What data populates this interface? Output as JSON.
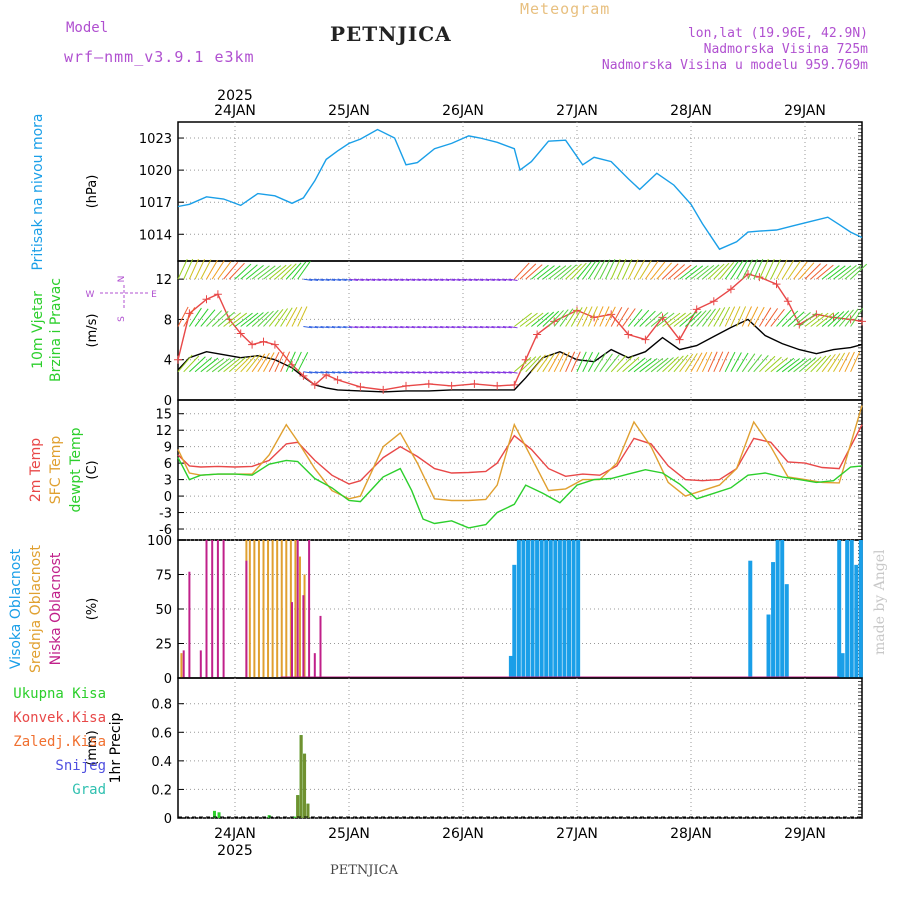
{
  "header": {
    "model_label": "Model",
    "model_name": "wrf—nmm_v3.9.1  e3km",
    "station": "PETNJICA",
    "product": "Meteogram",
    "lonlat": "lon,lat (19.96E, 42.9N)",
    "elevation": "Nadmorska Visina 725m",
    "model_elevation": "Nadmorska Visina u modelu 959.769m"
  },
  "footer": {
    "station": "PETNJICA"
  },
  "credit": "made by Angel",
  "chart_data": {
    "type": "line",
    "year_label": "2025",
    "dates": [
      "24JAN",
      "25JAN",
      "26JAN",
      "27JAN",
      "28JAN",
      "29JAN"
    ],
    "x_range_days": [
      23.5,
      29.5
    ],
    "panels": [
      {
        "id": "pressure",
        "ylabel": "Pritisak na nivou mora",
        "unit": "(hPa)",
        "yticks": [
          1014,
          1017,
          1020,
          1023
        ],
        "ylim": [
          1011.5,
          1024.5
        ],
        "series": [
          {
            "color": "#1a9fe8",
            "t": [
              23.5,
              23.6,
              23.75,
              23.9,
              24.05,
              24.2,
              24.35,
              24.5,
              24.6,
              24.7,
              24.8,
              24.9,
              25.0,
              25.1,
              25.25,
              25.4,
              25.5,
              25.6,
              25.75,
              25.9,
              26.05,
              26.15,
              26.3,
              26.45,
              26.5,
              26.6,
              26.75,
              26.9,
              27.05,
              27.15,
              27.3,
              27.45,
              27.55,
              27.7,
              27.85,
              28.0,
              28.1,
              28.25,
              28.4,
              28.5,
              28.6,
              28.75,
              28.9,
              29.05,
              29.2,
              29.3,
              29.4,
              29.5
            ],
            "v": [
              1016.6,
              1016.8,
              1017.5,
              1017.3,
              1016.7,
              1017.8,
              1017.6,
              1016.9,
              1017.4,
              1019.0,
              1021.0,
              1021.8,
              1022.5,
              1022.9,
              1023.8,
              1023.0,
              1020.5,
              1020.7,
              1022.0,
              1022.5,
              1023.2,
              1023.0,
              1022.6,
              1022.0,
              1020.0,
              1020.8,
              1022.7,
              1022.8,
              1020.5,
              1021.2,
              1020.8,
              1019.2,
              1018.2,
              1019.7,
              1018.6,
              1016.8,
              1015.0,
              1012.6,
              1013.3,
              1014.2,
              1014.3,
              1014.4,
              1014.8,
              1015.2,
              1015.6,
              1014.9,
              1014.2,
              1013.7
            ]
          }
        ]
      },
      {
        "id": "wind",
        "ylabel": "10m Vjetar Brzina i Pravac",
        "unit": "(m/s)",
        "compass": [
          "N",
          "W",
          "E",
          "S"
        ],
        "yticks": [
          0,
          4,
          8,
          12
        ],
        "ylim": [
          0,
          13.8
        ],
        "series": [
          {
            "color": "#000000",
            "t": [
              23.5,
              23.6,
              23.75,
              23.9,
              24.05,
              24.2,
              24.35,
              24.5,
              24.6,
              24.7,
              24.8,
              24.9,
              25.1,
              25.3,
              25.5,
              25.7,
              25.9,
              26.1,
              26.3,
              26.45,
              26.55,
              26.7,
              26.85,
              27.0,
              27.15,
              27.3,
              27.45,
              27.6,
              27.75,
              27.9,
              28.05,
              28.2,
              28.35,
              28.5,
              28.65,
              28.8,
              28.95,
              29.1,
              29.25,
              29.4,
              29.5
            ],
            "v": [
              3.0,
              4.2,
              4.8,
              4.5,
              4.2,
              4.4,
              4.0,
              3.2,
              2.3,
              1.5,
              1.2,
              1.0,
              0.9,
              0.8,
              0.9,
              0.9,
              1.0,
              1.0,
              1.0,
              1.0,
              2.2,
              4.2,
              4.8,
              4.0,
              3.8,
              5.0,
              4.2,
              4.8,
              6.2,
              5.0,
              5.4,
              6.3,
              7.2,
              8.0,
              6.4,
              5.6,
              5.0,
              4.6,
              5.0,
              5.2,
              5.5
            ]
          },
          {
            "color": "#e84848",
            "t": [
              23.5,
              23.6,
              23.75,
              23.85,
              23.95,
              24.05,
              24.15,
              24.25,
              24.35,
              24.5,
              24.6,
              24.7,
              24.8,
              24.9,
              25.1,
              25.3,
              25.5,
              25.7,
              25.9,
              26.1,
              26.3,
              26.45,
              26.55,
              26.65,
              26.8,
              27.0,
              27.15,
              27.3,
              27.45,
              27.6,
              27.75,
              27.9,
              28.05,
              28.2,
              28.35,
              28.5,
              28.6,
              28.75,
              28.85,
              28.95,
              29.1,
              29.25,
              29.4,
              29.5
            ],
            "v": [
              4.0,
              8.6,
              10.0,
              10.5,
              8.0,
              6.6,
              5.5,
              5.8,
              5.5,
              3.5,
              2.4,
              1.5,
              2.5,
              2.0,
              1.3,
              1.0,
              1.4,
              1.6,
              1.4,
              1.6,
              1.4,
              1.5,
              4.0,
              6.5,
              7.8,
              8.9,
              8.2,
              8.5,
              6.5,
              6.0,
              8.2,
              6.0,
              9.0,
              9.8,
              11.0,
              12.5,
              12.2,
              11.5,
              9.8,
              7.5,
              8.5,
              8.2,
              8.0,
              7.8
            ]
          }
        ]
      },
      {
        "id": "temperature",
        "ylabel": "2m Temp / SFC Temp / dewpt Temp",
        "unit": "(C)",
        "yticks": [
          -6,
          -3,
          0,
          3,
          6,
          9,
          12,
          15
        ],
        "ylim": [
          -8,
          17.5
        ],
        "series": [
          {
            "name": "2m Temp",
            "color": "#e84848",
            "t": [
              23.5,
              23.6,
              23.7,
              23.85,
              24.0,
              24.15,
              24.3,
              24.45,
              24.55,
              24.7,
              24.85,
              25.0,
              25.1,
              25.3,
              25.45,
              25.6,
              25.75,
              25.9,
              26.05,
              26.2,
              26.3,
              26.45,
              26.6,
              26.75,
              26.9,
              27.05,
              27.2,
              27.35,
              27.5,
              27.65,
              27.8,
              27.95,
              28.1,
              28.25,
              28.4,
              28.55,
              28.7,
              28.85,
              29.0,
              29.15,
              29.3,
              29.5
            ],
            "v": [
              7.5,
              5.5,
              5.3,
              5.4,
              5.3,
              5.4,
              6.5,
              9.5,
              9.8,
              6.5,
              3.8,
              2.2,
              2.8,
              7.0,
              9.0,
              7.2,
              5.0,
              4.2,
              4.3,
              4.5,
              6.0,
              11.0,
              8.5,
              5.0,
              3.6,
              4.0,
              3.8,
              5.5,
              10.5,
              9.5,
              5.5,
              3.0,
              2.8,
              3.0,
              5.0,
              10.5,
              9.8,
              6.2,
              6.0,
              5.2,
              5.0,
              13.0
            ]
          },
          {
            "name": "SFC Temp",
            "color": "#e0a030",
            "t": [
              23.5,
              23.6,
              23.7,
              23.85,
              24.0,
              24.15,
              24.3,
              24.45,
              24.55,
              24.7,
              24.85,
              25.0,
              25.1,
              25.3,
              25.45,
              25.6,
              25.75,
              25.9,
              26.05,
              26.2,
              26.3,
              26.45,
              26.6,
              26.75,
              26.9,
              27.05,
              27.2,
              27.35,
              27.5,
              27.65,
              27.8,
              27.95,
              28.1,
              28.25,
              28.4,
              28.55,
              28.7,
              28.85,
              29.0,
              29.15,
              29.3,
              29.5
            ],
            "v": [
              8.5,
              4.2,
              3.8,
              4.0,
              4.0,
              4.0,
              7.5,
              13.0,
              10.0,
              5.0,
              1.0,
              -0.5,
              0.0,
              9.0,
              11.5,
              6.0,
              -0.5,
              -0.8,
              -0.8,
              -0.6,
              2.0,
              13.0,
              7.0,
              1.0,
              1.3,
              3.0,
              3.0,
              6.0,
              13.5,
              9.0,
              2.5,
              0.0,
              1.0,
              2.0,
              5.0,
              13.5,
              9.0,
              3.5,
              3.0,
              2.5,
              2.4,
              16.5
            ]
          },
          {
            "name": "dewpt Temp",
            "color": "#2ccf2c",
            "t": [
              23.5,
              23.6,
              23.7,
              23.85,
              24.0,
              24.15,
              24.3,
              24.45,
              24.55,
              24.7,
              24.85,
              25.0,
              25.1,
              25.3,
              25.45,
              25.55,
              25.65,
              25.75,
              25.9,
              26.05,
              26.2,
              26.3,
              26.45,
              26.55,
              26.7,
              26.85,
              27.0,
              27.15,
              27.3,
              27.45,
              27.6,
              27.75,
              27.9,
              28.05,
              28.2,
              28.35,
              28.5,
              28.65,
              28.8,
              28.95,
              29.1,
              29.25,
              29.4,
              29.5
            ],
            "v": [
              7.0,
              3.0,
              3.8,
              4.0,
              4.0,
              3.8,
              5.8,
              6.5,
              6.3,
              3.2,
              1.5,
              -0.8,
              -1.0,
              3.5,
              5.0,
              1.0,
              -4.2,
              -5.0,
              -4.5,
              -5.8,
              -5.2,
              -3.0,
              -1.5,
              2.0,
              0.5,
              -1.2,
              2.0,
              3.0,
              3.2,
              4.0,
              4.8,
              4.2,
              2.2,
              -0.5,
              0.5,
              1.5,
              3.8,
              4.2,
              3.5,
              3.0,
              2.5,
              2.8,
              5.3,
              5.5
            ]
          }
        ]
      },
      {
        "id": "cloud",
        "ylabel": "Visoka Oblacnost / Srednja Oblacnost / Niska Oblacnost",
        "unit": "(%)",
        "yticks": [
          0,
          25,
          50,
          75,
          100
        ],
        "ylim": [
          0,
          100
        ],
        "colors": {
          "high": "#1a9fe8",
          "medium": "#e0a030",
          "low": "#c0208a"
        },
        "low_bars": {
          "t": [
            23.55,
            23.6,
            23.7,
            23.75,
            23.8,
            23.85,
            23.9,
            24.1,
            24.5,
            24.55,
            24.6,
            24.65,
            24.7,
            24.75
          ],
          "v": [
            20,
            77,
            20,
            100,
            100,
            100,
            100,
            85,
            55,
            100,
            60,
            100,
            18,
            45
          ]
        },
        "medium_bars": {
          "t": [
            23.53,
            24.1,
            24.13,
            24.17,
            24.21,
            24.25,
            24.29,
            24.33,
            24.37,
            24.41,
            24.45,
            24.49,
            24.53,
            24.57,
            24.61
          ],
          "v": [
            18,
            100,
            100,
            100,
            100,
            100,
            100,
            100,
            100,
            100,
            100,
            100,
            100,
            88,
            75
          ]
        },
        "high_bars": {
          "t": [
            26.42,
            26.45,
            26.49,
            26.53,
            26.57,
            26.61,
            26.65,
            26.69,
            26.73,
            26.77,
            26.81,
            26.85,
            26.89,
            26.93,
            26.97,
            27.01,
            28.52,
            28.68,
            28.72,
            28.76,
            28.8,
            28.84,
            29.3,
            29.33,
            29.37,
            29.41,
            29.45,
            29.49
          ],
          "v": [
            16,
            82,
            100,
            100,
            100,
            100,
            100,
            100,
            100,
            100,
            100,
            100,
            100,
            100,
            100,
            100,
            85,
            46,
            84,
            100,
            100,
            68,
            100,
            18,
            100,
            100,
            82,
            100
          ]
        }
      },
      {
        "id": "precip",
        "ylabel": "1hr Precip",
        "unit": "(mm)",
        "legend": [
          "Ukupna  Kisa",
          "Konvek.Kisa",
          "Zaledj.Kisa",
          "Snijeg",
          "Grad"
        ],
        "legend_colors": [
          "#2ccf2c",
          "#e84848",
          "#f07030",
          "#5050e0",
          "#30c0b0"
        ],
        "yticks": [
          0,
          0.2,
          0.4,
          0.6,
          0.8
        ],
        "ylim": [
          0,
          0.98
        ],
        "total_bars": {
          "t": [
            23.82,
            23.86,
            24.3,
            24.52,
            24.55,
            24.58,
            24.61,
            24.64
          ],
          "v": [
            0.05,
            0.04,
            0.02,
            0.01,
            0.16,
            0.58,
            0.45,
            0.1
          ],
          "color": "#2ccf2c"
        },
        "mixed_bars": {
          "t": [
            24.55,
            24.58,
            24.61,
            24.64
          ],
          "v": [
            0.16,
            0.58,
            0.45,
            0.1
          ],
          "color": "#709030"
        }
      }
    ]
  }
}
